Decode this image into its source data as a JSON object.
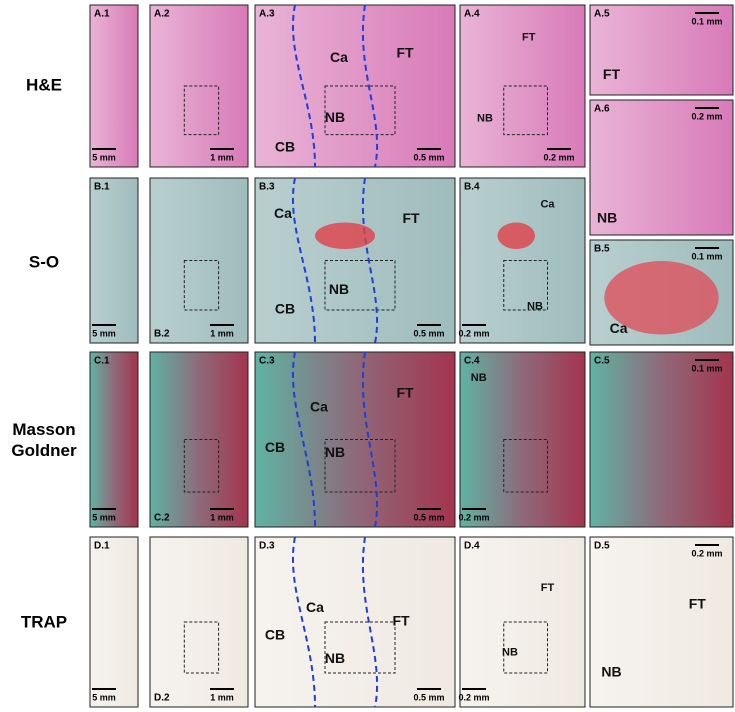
{
  "rows": [
    {
      "label": "H&E",
      "panels": [
        {
          "id": "A.1",
          "scale": "5 mm"
        },
        {
          "id": "A.2",
          "scale": "1 mm"
        },
        {
          "id": "A.3",
          "scale": "0.5 mm",
          "tags": [
            "Ca",
            "FT",
            "NB",
            "CB"
          ]
        },
        {
          "id": "A.4",
          "scale": "0.2 mm",
          "tags": [
            "FT",
            "NB"
          ]
        },
        {
          "id": "A.5",
          "scale": "0.1 mm",
          "tags": [
            "FT"
          ]
        },
        {
          "id": "A.6",
          "scale": "0.2 mm",
          "tags": [
            "NB"
          ]
        }
      ]
    },
    {
      "label": "S-O",
      "panels": [
        {
          "id": "B.1",
          "scale": "5 mm"
        },
        {
          "id": "B.2",
          "scale": "1 mm"
        },
        {
          "id": "B.3",
          "scale": "0.5 mm",
          "tags": [
            "Ca",
            "FT",
            "NB",
            "CB"
          ]
        },
        {
          "id": "B.4",
          "scale": "0.2 mm",
          "tags": [
            "Ca",
            "NB"
          ]
        },
        {
          "id": "B.5",
          "scale": "0.1 mm",
          "tags": [
            "Ca"
          ]
        }
      ]
    },
    {
      "label": "Masson Goldner",
      "panels": [
        {
          "id": "C.1",
          "scale": "5 mm"
        },
        {
          "id": "C.2",
          "scale": "1 mm"
        },
        {
          "id": "C.3",
          "scale": "0.5 mm",
          "tags": [
            "Ca",
            "FT",
            "CB",
            "NB"
          ]
        },
        {
          "id": "C.4",
          "scale": "0.2 mm",
          "tags": [
            "NB"
          ]
        },
        {
          "id": "C.5",
          "scale": "0.1 mm"
        }
      ]
    },
    {
      "label": "TRAP",
      "panels": [
        {
          "id": "D.1",
          "scale": "5 mm"
        },
        {
          "id": "D.2",
          "scale": "1 mm"
        },
        {
          "id": "D.3",
          "scale": "0.5 mm",
          "tags": [
            "Ca",
            "FT",
            "CB",
            "NB"
          ]
        },
        {
          "id": "D.4",
          "scale": "0.2 mm",
          "tags": [
            "FT",
            "NB"
          ]
        },
        {
          "id": "D.5",
          "scale": "0.2 mm",
          "tags": [
            "FT",
            "NB"
          ]
        }
      ]
    }
  ]
}
